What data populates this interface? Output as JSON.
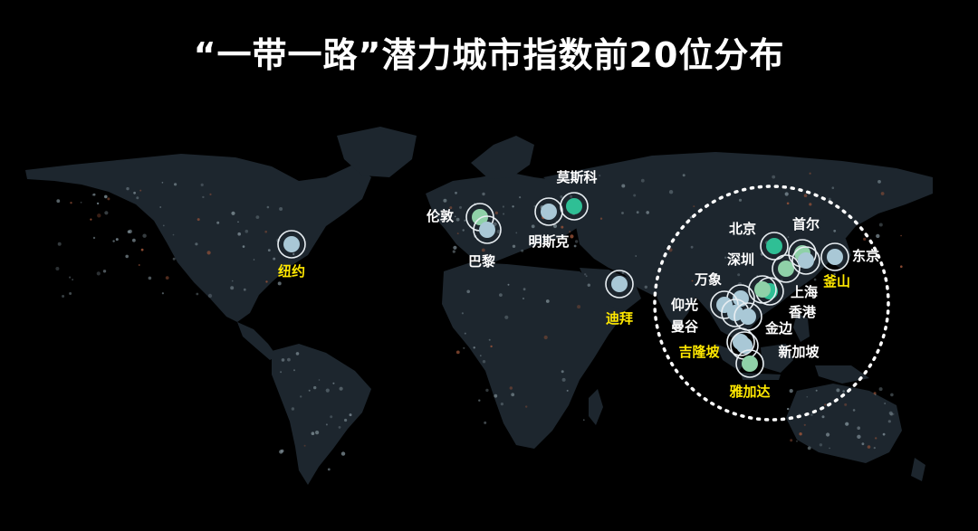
{
  "title": "“一带一路”潜力城市指数前20位分布",
  "colors": {
    "background": "#000000",
    "land": "#1d262e",
    "label_default": "#ffffff",
    "label_highlight": "#ffe800",
    "marker_light_blue": "#a9c8d6",
    "marker_green": "#8fd1a8",
    "marker_teal": "#2fbf95",
    "halo": "#e8eef2",
    "region_circle": "#ffffff",
    "city_dot": "#7b8a92",
    "city_dot_warm": "#a0563a"
  },
  "cities": [
    {
      "name": "纽约",
      "highlight": true,
      "marker": "light_blue"
    },
    {
      "name": "伦敦",
      "highlight": false,
      "marker": "green"
    },
    {
      "name": "巴黎",
      "highlight": false,
      "marker": "light_blue"
    },
    {
      "name": "明斯克",
      "highlight": false,
      "marker": "light_blue"
    },
    {
      "name": "莫斯科",
      "highlight": false,
      "marker": "teal"
    },
    {
      "name": "迪拜",
      "highlight": true,
      "marker": "light_blue"
    },
    {
      "name": "北京",
      "highlight": false,
      "marker": "teal"
    },
    {
      "name": "首尔",
      "highlight": false,
      "marker": "green"
    },
    {
      "name": "东京",
      "highlight": false,
      "marker": "light_blue"
    },
    {
      "name": "深圳",
      "highlight": false,
      "marker": "green"
    },
    {
      "name": "釜山",
      "highlight": true,
      "marker": "light_blue"
    },
    {
      "name": "上海",
      "highlight": false,
      "marker": "teal"
    },
    {
      "name": "万象",
      "highlight": false,
      "marker": "light_blue"
    },
    {
      "name": "仰光",
      "highlight": false,
      "marker": "light_blue"
    },
    {
      "name": "香港",
      "highlight": false,
      "marker": "green"
    },
    {
      "name": "曼谷",
      "highlight": false,
      "marker": "light_blue"
    },
    {
      "name": "金边",
      "highlight": false,
      "marker": "light_blue"
    },
    {
      "name": "吉隆坡",
      "highlight": true,
      "marker": "light_blue"
    },
    {
      "name": "新加坡",
      "highlight": false,
      "marker": "light_blue"
    },
    {
      "name": "雅加达",
      "highlight": true,
      "marker": "green"
    }
  ]
}
